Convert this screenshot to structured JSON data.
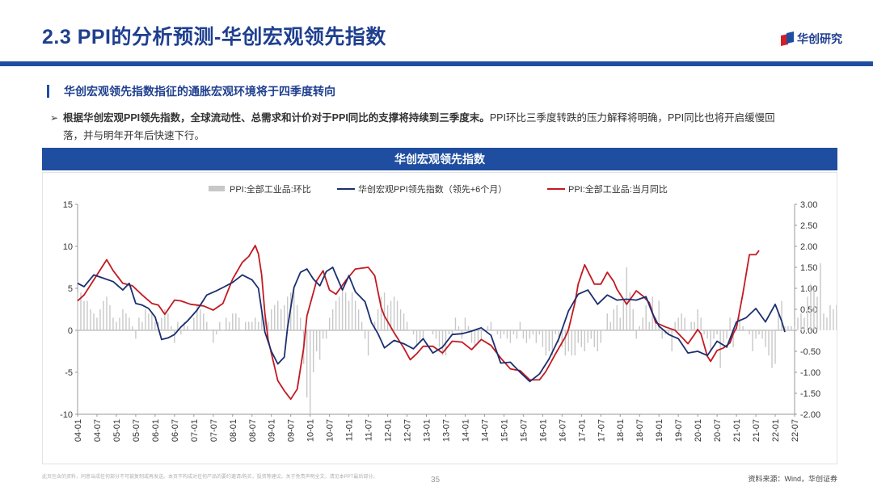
{
  "header": {
    "title": "2.3 PPI的分析预测-华创宏观领先指数",
    "logo_text": "华创研究"
  },
  "section": {
    "title": "华创宏观领先指数指征的通胀宏观环境将于四季度转向"
  },
  "bullet": {
    "bold_text": "根据华创宏观PPI领先指数，全球流动性、总需求和计价对于PPI同比的支撑将持续到三季度末。",
    "text": "PPI环比三季度转跌的压力解释将明确，PPI同比也将开启缓慢回",
    "text_cont": "落，并与明年开年后快速下行。"
  },
  "chart_header": "华创宏观领先指数",
  "chart_data": {
    "type": "line",
    "legend": [
      "PPI:全部工业品:环比",
      "华创宏观PPI领先指数（领先+6个月）",
      "PPI:全部工业品:当月同比"
    ],
    "legend_position": "top",
    "colors": {
      "mom": "#c8c8c8",
      "leading": "#1c2f6e",
      "yoy": "#c21a22"
    },
    "ylim_left": [
      -10,
      15
    ],
    "ylim_right": [
      -2.0,
      3.0
    ],
    "yticks_left": [
      "15",
      "10",
      "5",
      "0",
      "-5",
      "-10"
    ],
    "yticks_right": [
      "3.00",
      "2.50",
      "2.00",
      "1.50",
      "1.00",
      "0.50",
      "0.00",
      "-0.50",
      "-1.00",
      "-1.50",
      "-2.00"
    ],
    "x_start": "2004-01",
    "x_end": "2022-07",
    "xticks": [
      "04-01",
      "04-07",
      "05-01",
      "05-07",
      "06-01",
      "06-07",
      "07-01",
      "07-07",
      "08-01",
      "08-07",
      "09-01",
      "09-07",
      "10-01",
      "10-07",
      "11-01",
      "11-07",
      "12-01",
      "12-07",
      "13-01",
      "13-07",
      "14-01",
      "14-07",
      "15-01",
      "15-07",
      "16-01",
      "16-07",
      "17-01",
      "17-07",
      "18-01",
      "18-07",
      "19-01",
      "19-07",
      "20-01",
      "20-07",
      "21-01",
      "21-07",
      "22-01",
      "22-07"
    ],
    "yoy_points": [
      [
        "2004-01",
        3.5
      ],
      [
        "2004-03",
        4.2
      ],
      [
        "2004-06",
        6.0
      ],
      [
        "2004-10",
        8.4
      ],
      [
        "2004-12",
        7.1
      ],
      [
        "2005-03",
        5.6
      ],
      [
        "2005-06",
        5.3
      ],
      [
        "2005-09",
        4.2
      ],
      [
        "2005-12",
        3.2
      ],
      [
        "2006-02",
        3.0
      ],
      [
        "2006-04",
        1.9
      ],
      [
        "2006-07",
        3.6
      ],
      [
        "2006-09",
        3.5
      ],
      [
        "2006-12",
        3.1
      ],
      [
        "2007-04",
        2.9
      ],
      [
        "2007-07",
        2.4
      ],
      [
        "2007-10",
        3.2
      ],
      [
        "2008-01",
        6.1
      ],
      [
        "2008-04",
        8.1
      ],
      [
        "2008-06",
        8.8
      ],
      [
        "2008-08",
        10.1
      ],
      [
        "2008-09",
        9.1
      ],
      [
        "2008-10",
        6.6
      ],
      [
        "2008-11",
        2.0
      ],
      [
        "2008-12",
        -1.1
      ],
      [
        "2009-03",
        -6.0
      ],
      [
        "2009-05",
        -7.2
      ],
      [
        "2009-07",
        -8.2
      ],
      [
        "2009-09",
        -7.0
      ],
      [
        "2009-11",
        -2.1
      ],
      [
        "2009-12",
        1.7
      ],
      [
        "2010-03",
        5.9
      ],
      [
        "2010-05",
        7.1
      ],
      [
        "2010-07",
        4.8
      ],
      [
        "2010-09",
        4.3
      ],
      [
        "2010-12",
        5.9
      ],
      [
        "2011-03",
        7.3
      ],
      [
        "2011-07",
        7.5
      ],
      [
        "2011-09",
        6.5
      ],
      [
        "2011-11",
        2.7
      ],
      [
        "2011-12",
        1.7
      ],
      [
        "2012-03",
        -0.3
      ],
      [
        "2012-06",
        -2.1
      ],
      [
        "2012-08",
        -3.5
      ],
      [
        "2012-10",
        -2.8
      ],
      [
        "2012-12",
        -1.9
      ],
      [
        "2013-03",
        -1.9
      ],
      [
        "2013-06",
        -2.7
      ],
      [
        "2013-09",
        -1.3
      ],
      [
        "2013-12",
        -1.4
      ],
      [
        "2014-03",
        -2.3
      ],
      [
        "2014-06",
        -1.1
      ],
      [
        "2014-09",
        -1.8
      ],
      [
        "2014-12",
        -3.3
      ],
      [
        "2015-03",
        -4.6
      ],
      [
        "2015-06",
        -4.8
      ],
      [
        "2015-09",
        -5.9
      ],
      [
        "2015-12",
        -5.9
      ],
      [
        "2016-02",
        -4.9
      ],
      [
        "2016-05",
        -2.8
      ],
      [
        "2016-08",
        -0.8
      ],
      [
        "2016-09",
        0.1
      ],
      [
        "2016-11",
        3.3
      ],
      [
        "2016-12",
        5.5
      ],
      [
        "2017-02",
        7.8
      ],
      [
        "2017-05",
        5.5
      ],
      [
        "2017-07",
        5.5
      ],
      [
        "2017-09",
        6.9
      ],
      [
        "2017-11",
        5.8
      ],
      [
        "2017-12",
        4.9
      ],
      [
        "2018-03",
        3.1
      ],
      [
        "2018-06",
        4.7
      ],
      [
        "2018-08",
        4.1
      ],
      [
        "2018-10",
        3.3
      ],
      [
        "2018-12",
        0.9
      ],
      [
        "2019-03",
        0.4
      ],
      [
        "2019-06",
        0.0
      ],
      [
        "2019-08",
        -0.8
      ],
      [
        "2019-10",
        -1.6
      ],
      [
        "2019-12",
        -0.5
      ],
      [
        "2020-01",
        0.1
      ],
      [
        "2020-02",
        -0.4
      ],
      [
        "2020-04",
        -3.1
      ],
      [
        "2020-05",
        -3.7
      ],
      [
        "2020-07",
        -2.4
      ],
      [
        "2020-09",
        -2.1
      ],
      [
        "2020-11",
        -1.5
      ],
      [
        "2020-12",
        -0.4
      ],
      [
        "2021-01",
        0.3
      ],
      [
        "2021-03",
        4.4
      ],
      [
        "2021-05",
        9.0
      ],
      [
        "2021-07",
        9.0
      ],
      [
        "2021-08",
        9.5
      ]
    ],
    "leading_points": [
      [
        "2004-01",
        5.6
      ],
      [
        "2004-03",
        5.2
      ],
      [
        "2004-06",
        6.6
      ],
      [
        "2004-09",
        6.2
      ],
      [
        "2004-12",
        5.8
      ],
      [
        "2005-03",
        4.8
      ],
      [
        "2005-05",
        5.6
      ],
      [
        "2005-07",
        3.2
      ],
      [
        "2005-09",
        3.0
      ],
      [
        "2005-11",
        2.6
      ],
      [
        "2006-01",
        1.6
      ],
      [
        "2006-03",
        -1.1
      ],
      [
        "2006-05",
        -0.9
      ],
      [
        "2006-07",
        -0.5
      ],
      [
        "2006-09",
        0.4
      ],
      [
        "2006-11",
        1.1
      ],
      [
        "2007-02",
        2.4
      ],
      [
        "2007-05",
        4.2
      ],
      [
        "2007-08",
        4.7
      ],
      [
        "2007-10",
        5.1
      ],
      [
        "2008-01",
        5.7
      ],
      [
        "2008-04",
        6.6
      ],
      [
        "2008-07",
        6.0
      ],
      [
        "2008-09",
        5.0
      ],
      [
        "2008-11",
        -0.2
      ],
      [
        "2009-01",
        -2.5
      ],
      [
        "2009-03",
        -4.0
      ],
      [
        "2009-05",
        -3.2
      ],
      [
        "2009-06",
        0.3
      ],
      [
        "2009-08",
        5.1
      ],
      [
        "2009-10",
        6.9
      ],
      [
        "2009-12",
        7.3
      ],
      [
        "2010-02",
        6.1
      ],
      [
        "2010-04",
        5.3
      ],
      [
        "2010-06",
        7.0
      ],
      [
        "2010-08",
        7.5
      ],
      [
        "2010-11",
        4.8
      ],
      [
        "2011-01",
        6.5
      ],
      [
        "2011-03",
        4.6
      ],
      [
        "2011-06",
        3.4
      ],
      [
        "2011-08",
        0.9
      ],
      [
        "2011-10",
        -0.4
      ],
      [
        "2011-12",
        -2.1
      ],
      [
        "2012-03",
        -1.2
      ],
      [
        "2012-06",
        -1.6
      ],
      [
        "2012-09",
        -2.2
      ],
      [
        "2012-12",
        -1.0
      ],
      [
        "2013-03",
        -2.7
      ],
      [
        "2013-06",
        -2.0
      ],
      [
        "2013-09",
        -0.5
      ],
      [
        "2013-12",
        -0.4
      ],
      [
        "2014-03",
        -0.1
      ],
      [
        "2014-06",
        0.3
      ],
      [
        "2014-09",
        -0.6
      ],
      [
        "2014-12",
        -3.9
      ],
      [
        "2015-03",
        -3.8
      ],
      [
        "2015-06",
        -5.0
      ],
      [
        "2015-09",
        -6.1
      ],
      [
        "2015-12",
        -5.2
      ],
      [
        "2016-03",
        -3.4
      ],
      [
        "2016-06",
        -1.0
      ],
      [
        "2016-09",
        2.3
      ],
      [
        "2016-12",
        4.3
      ],
      [
        "2017-03",
        4.8
      ],
      [
        "2017-06",
        3.1
      ],
      [
        "2017-09",
        4.2
      ],
      [
        "2017-12",
        3.6
      ],
      [
        "2018-03",
        3.7
      ],
      [
        "2018-06",
        3.6
      ],
      [
        "2018-09",
        4.0
      ],
      [
        "2018-11",
        2.0
      ],
      [
        "2019-01",
        0.5
      ],
      [
        "2019-04",
        -0.5
      ],
      [
        "2019-07",
        -1.0
      ],
      [
        "2019-10",
        -2.7
      ],
      [
        "2020-01",
        -2.5
      ],
      [
        "2020-04",
        -3.0
      ],
      [
        "2020-07",
        -1.3
      ],
      [
        "2020-10",
        -2.0
      ],
      [
        "2021-01",
        1.0
      ],
      [
        "2021-04",
        1.5
      ],
      [
        "2021-07",
        2.6
      ],
      [
        "2021-10",
        1.0
      ],
      [
        "2022-01",
        3.1
      ],
      [
        "2022-03",
        1.1
      ],
      [
        "2022-04",
        -0.2
      ]
    ],
    "mom_values_right_axis": [
      0.9,
      0.9,
      0.7,
      0.7,
      0.5,
      0.4,
      0.3,
      0.5,
      0.7,
      0.8,
      0.6,
      0.3,
      0.2,
      0.3,
      0.5,
      0.4,
      0.3,
      0.1,
      -0.2,
      0.3,
      0.2,
      0.5,
      0.4,
      0.4,
      0.2,
      0.2,
      0.3,
      0.5,
      0.4,
      0.1,
      -0.3,
      0.2,
      -0.1,
      0.2,
      0.1,
      0.0,
      0.3,
      0.6,
      0.5,
      0.4,
      0.2,
      0.0,
      -0.3,
      -0.1,
      0.2,
      0.0,
      0.3,
      0.2,
      0.4,
      0.4,
      0.3,
      0.0,
      0.2,
      0.2,
      0.2,
      0.3,
      0.2,
      0.4,
      0.3,
      0.2,
      0.5,
      0.6,
      0.7,
      0.5,
      0.6,
      0.8,
      0.9,
      1.0,
      0.6,
      0.3,
      -0.8,
      -1.6,
      -2.0,
      -1.0,
      -0.5,
      -0.7,
      -0.2,
      -0.2,
      0.3,
      0.5,
      0.7,
      0.8,
      1.0,
      0.9,
      0.7,
      0.9,
      0.7,
      0.5,
      0.2,
      -0.2,
      -0.6,
      0.0,
      0.2,
      0.5,
      0.8,
      0.9,
      0.6,
      0.7,
      0.8,
      0.7,
      0.5,
      0.4,
      0.2,
      0.0,
      -0.1,
      -0.4,
      -0.3,
      -0.2,
      0.0,
      0.0,
      -0.1,
      -0.2,
      -0.4,
      -0.6,
      -0.6,
      -0.1,
      -0.1,
      0.3,
      0.1,
      -0.2,
      0.3,
      0.1,
      -0.3,
      -0.4,
      -0.3,
      -0.2,
      0.0,
      0.1,
      0.2,
      0.0,
      -0.1,
      -0.2,
      -0.1,
      -0.2,
      -0.3,
      -0.1,
      -0.2,
      0.2,
      -0.2,
      -0.3,
      -0.2,
      -0.1,
      -0.3,
      -0.1,
      -0.4,
      -0.6,
      -0.5,
      -0.6,
      -0.1,
      -0.3,
      -0.4,
      -0.6,
      -0.5,
      -0.6,
      -0.6,
      -0.3,
      -0.4,
      -0.5,
      -0.3,
      -0.2,
      -0.4,
      -0.5,
      -0.3,
      0.0,
      0.4,
      0.2,
      0.5,
      0.6,
      0.3,
      0.7,
      1.5,
      0.9,
      0.5,
      -0.2,
      0.1,
      0.3,
      0.6,
      0.2,
      0.8,
      0.3,
      0.7,
      -0.2,
      -0.1,
      -0.1,
      -0.5,
      0.2,
      0.3,
      0.4,
      0.3,
      0.0,
      0.2,
      0.2,
      0.5,
      0.3,
      -0.1,
      -0.2,
      -0.5,
      -0.2,
      -0.1,
      -0.9,
      -0.3,
      -0.2,
      0.3,
      -0.4,
      0.1,
      0.3,
      0.1,
      0.0,
      -0.1,
      -0.5,
      -0.2,
      -0.1,
      -0.2,
      -0.4,
      -0.6,
      -0.9,
      -0.8,
      0.4,
      0.7,
      0.1,
      0.1,
      0.1,
      0.1,
      0.3,
      0.4,
      0.3,
      0.8,
      1.1,
      1.0,
      0.8,
      1.6,
      0.4,
      0.3,
      0.6,
      0.5,
      0.6,
      -0.2,
      0.2,
      0.4,
      0.3,
      0.2,
      -0.1,
      0.1,
      0.0,
      0.0,
      0.0,
      0.0,
      0.0,
      0.0,
      0.0,
      0.0,
      0.0,
      0.0,
      0.0,
      0.0,
      0.0,
      0.0,
      0.0
    ]
  },
  "footer": {
    "note": "此页包含的资料，同意当成任何部分不可被复制或再发送。本页不构成对任何产品的要约邀请/购买，投资等建议。关于免责声明全文，请见本PPT最后部分。",
    "page_number": "35",
    "source": "资料来源：Wind，华创证券"
  }
}
